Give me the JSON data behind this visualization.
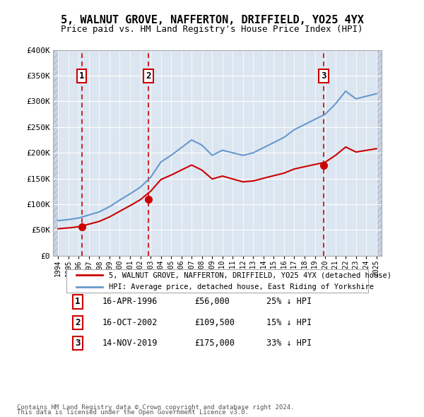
{
  "title1": "5, WALNUT GROVE, NAFFERTON, DRIFFIELD, YO25 4YX",
  "title2": "Price paid vs. HM Land Registry's House Price Index (HPI)",
  "sale_dates": [
    1996.29,
    2002.79,
    2019.87
  ],
  "sale_prices": [
    56000,
    109500,
    175000
  ],
  "sale_labels": [
    "1",
    "2",
    "3"
  ],
  "legend_red": "5, WALNUT GROVE, NAFFERTON, DRIFFIELD, YO25 4YX (detached house)",
  "legend_blue": "HPI: Average price, detached house, East Riding of Yorkshire",
  "table_rows": [
    [
      "1",
      "16-APR-1996",
      "£56,000",
      "25% ↓ HPI"
    ],
    [
      "2",
      "16-OCT-2002",
      "£109,500",
      "15% ↓ HPI"
    ],
    [
      "3",
      "14-NOV-2019",
      "£175,000",
      "33% ↓ HPI"
    ]
  ],
  "footnote1": "Contains HM Land Registry data © Crown copyright and database right 2024.",
  "footnote2": "This data is licensed under the Open Government Licence v3.0.",
  "ylim": [
    0,
    400000
  ],
  "xlim": [
    1993.5,
    2025.5
  ],
  "yticks": [
    0,
    50000,
    100000,
    150000,
    200000,
    250000,
    300000,
    350000,
    400000
  ],
  "ytick_labels": [
    "£0",
    "£50K",
    "£100K",
    "£150K",
    "£200K",
    "£250K",
    "£300K",
    "£350K",
    "£400K"
  ],
  "red_line_color": "#cc0000",
  "blue_line_color": "#6699cc",
  "bg_color": "#dce6f1",
  "hatch_color": "#c0c8d8",
  "grid_color": "#ffffff",
  "vline_color": "#cc0000",
  "box_color": "#cc0000"
}
